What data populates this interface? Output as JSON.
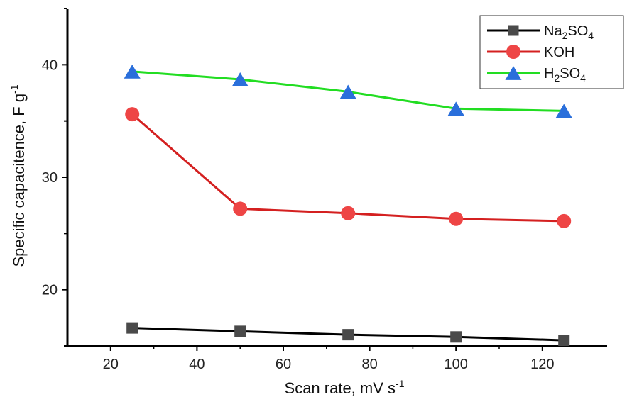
{
  "chart_data": {
    "type": "line",
    "xlabel": {
      "main": "Scan rate, mV s",
      "sup": "-1"
    },
    "ylabel": {
      "main": "Specific capacitence, F g",
      "sup": "-1"
    },
    "xlim": [
      10,
      135
    ],
    "ylim": [
      15,
      45
    ],
    "xticks": [
      20,
      40,
      60,
      80,
      100,
      120
    ],
    "yticks_labeled": [
      20,
      30,
      40
    ],
    "y_minor_step": 5,
    "grid": false,
    "legend_position": "top-right",
    "x": [
      25,
      50,
      75,
      100,
      125
    ],
    "series": [
      {
        "key": "na2so4",
        "name": "Na2SO4",
        "legend_parts": [
          [
            "Na",
            "base"
          ],
          [
            "2",
            "sub"
          ],
          [
            "SO",
            "base"
          ],
          [
            "4",
            "sub"
          ]
        ],
        "color": "#000000",
        "marker": "square",
        "marker_color": "#4a4a4a",
        "values": [
          16.6,
          16.3,
          16.0,
          15.8,
          15.5
        ]
      },
      {
        "key": "koh",
        "name": "KOH",
        "legend_parts": [
          [
            "KOH",
            "base"
          ]
        ],
        "color": "#d42020",
        "marker": "circle",
        "marker_color": "#ee4545",
        "values": [
          35.6,
          27.2,
          26.8,
          26.3,
          26.1
        ]
      },
      {
        "key": "h2so4",
        "name": "H2SO4",
        "legend_parts": [
          [
            "H",
            "base"
          ],
          [
            "2",
            "sub"
          ],
          [
            "SO",
            "base"
          ],
          [
            "4",
            "sub"
          ]
        ],
        "color": "#22dd22",
        "marker": "triangle",
        "marker_color": "#2a6fdb",
        "values": [
          39.4,
          38.7,
          37.6,
          36.1,
          35.9
        ]
      }
    ]
  }
}
